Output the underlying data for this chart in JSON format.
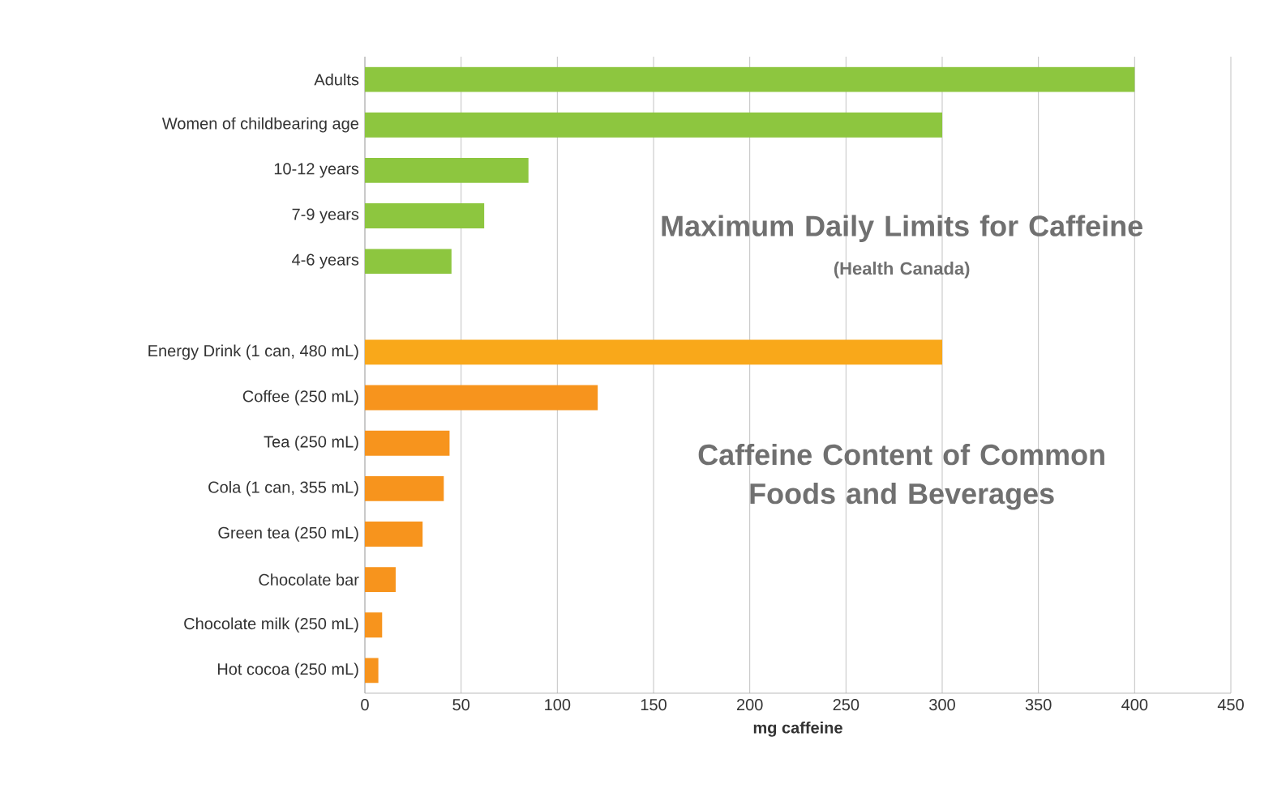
{
  "chart_data": {
    "type": "bar",
    "orientation": "horizontal",
    "xlabel": "mg caffeine",
    "categories": [
      "Adults",
      "Women of childbearing age",
      "10-12 years",
      "7-9 years",
      "4-6 years",
      null,
      "Energy Drink (1 can, 480 mL)",
      "Coffee (250 mL)",
      "Tea (250 mL)",
      "Cola (1 can, 355 mL)",
      "Green tea (250 mL)",
      "Chocolate bar",
      "Chocolate milk (250 mL)",
      "Hot cocoa (250 mL)"
    ],
    "values": [
      400,
      300,
      85,
      62,
      45,
      null,
      300,
      121,
      44,
      41,
      30,
      16,
      9,
      7
    ],
    "colors": [
      "#8dc63f",
      "#8dc63f",
      "#8dc63f",
      "#8dc63f",
      "#8dc63f",
      "#8dc63f",
      "#f9a81a",
      "#f7941d",
      "#f7941d",
      "#f7941d",
      "#f7941d",
      "#f7941d",
      "#f7941d",
      "#f7941d"
    ],
    "xlim": [
      0,
      450
    ],
    "xticks": [
      0,
      50,
      100,
      150,
      200,
      250,
      300,
      350,
      400,
      450
    ],
    "grid": "x",
    "annotations": [
      "Maximum Daily Limits for Caffeine",
      "(Health Canada)",
      "Caffeine Content of Common Foods and Beverages"
    ]
  }
}
